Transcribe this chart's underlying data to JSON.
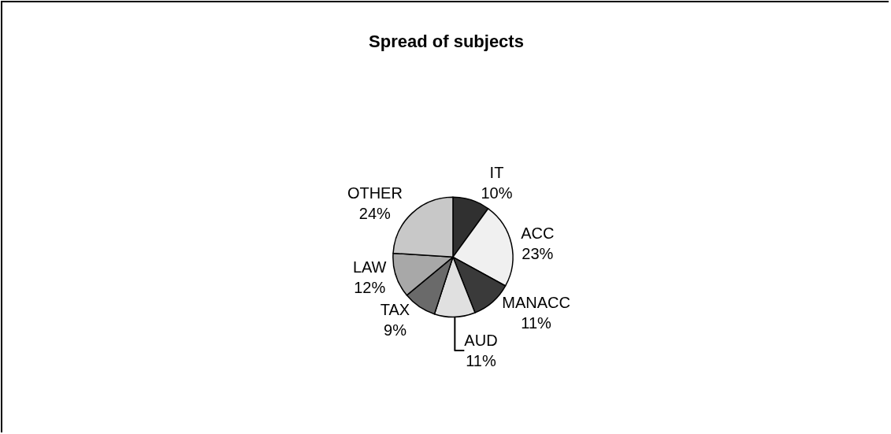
{
  "chart_data": {
    "type": "pie",
    "title": "Spread of subjects",
    "categories": [
      "IT",
      "ACC",
      "MANACC",
      "AUD",
      "TAX",
      "LAW",
      "OTHER"
    ],
    "values": [
      10,
      23,
      11,
      11,
      9,
      12,
      24
    ],
    "value_labels": [
      "10%",
      "23%",
      "11%",
      "11%",
      "9%",
      "12%",
      "24%"
    ],
    "colors": [
      "#303030",
      "#f0f0f0",
      "#3a3a3a",
      "#e0e0e0",
      "#6a6a6a",
      "#a8a8a8",
      "#c8c8c8"
    ],
    "legend": false
  }
}
